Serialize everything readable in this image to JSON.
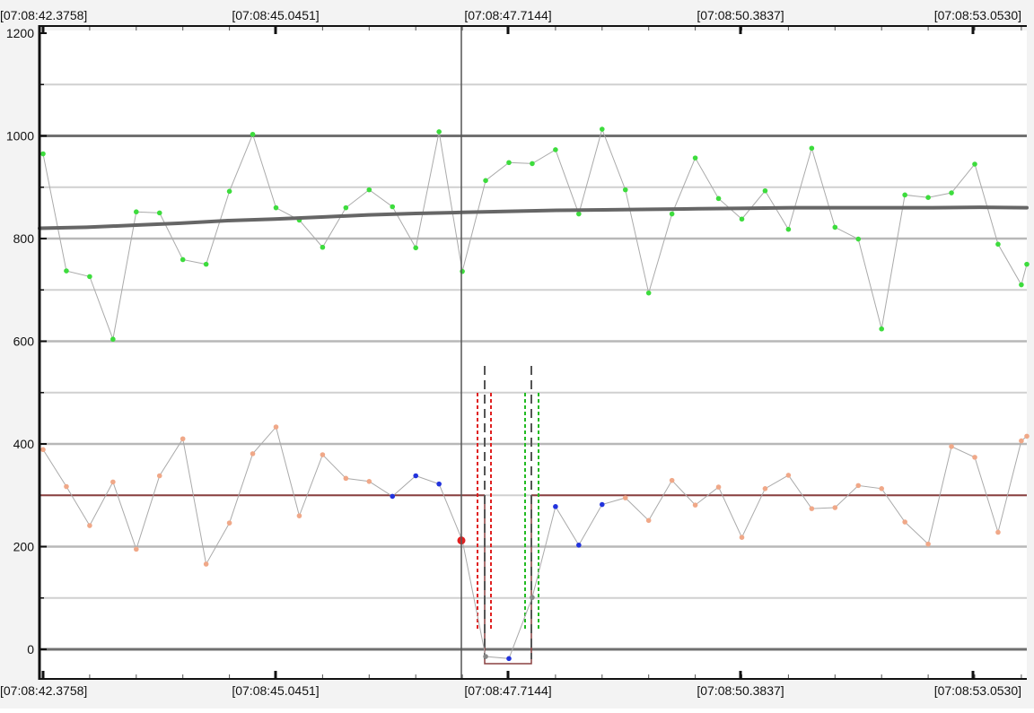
{
  "chart_data": {
    "type": "scatter",
    "x_axis": {
      "tick_labels": [
        "[07:08:42.3758]",
        "[07:08:45.0451]",
        "[07:08:47.7144]",
        "[07:08:50.3837]",
        "[07:08:53.0530]"
      ],
      "top_labels": [
        "[07:08:42.3758]",
        "[07:08:45.0451]",
        "[07:08:47.7144]",
        "[07:08:50.3837]",
        "[07:08:53.0530]"
      ],
      "bottom_labels": [
        "[07:08:42.3758]",
        "[07:08:45.0451]",
        "[07:08:47.7144]",
        "[07:08:50.3837]",
        "[07:08:53.0530]"
      ]
    },
    "y_axis": {
      "range": [
        -60,
        1200
      ],
      "tick_labels": [
        "1200",
        "1000",
        "800",
        "600",
        "400",
        "200",
        "0"
      ],
      "major_gridlines": [
        1000,
        800,
        600,
        400,
        200,
        0
      ],
      "minor_gridlines": [
        1100,
        900,
        700,
        500,
        300,
        100
      ],
      "bold_gridlines": [
        1000,
        0
      ]
    },
    "grid": true,
    "series": [
      {
        "role": "upper",
        "color": "#3ddc3d",
        "values": [
          965,
          737,
          726,
          604,
          852,
          850,
          759,
          750,
          892,
          1003,
          860,
          836,
          783,
          860,
          895,
          862,
          782,
          1008,
          736,
          913,
          948,
          946,
          973,
          848,
          1013,
          895,
          694,
          848,
          957,
          878,
          838,
          893,
          818,
          976,
          822,
          799,
          624,
          885,
          880,
          889,
          945,
          789,
          710,
          750
        ]
      },
      {
        "role": "lower",
        "color": "#f0a888",
        "values": [
          389,
          317,
          241,
          326,
          195,
          338,
          410,
          166,
          246,
          381,
          433,
          260,
          379,
          333,
          327,
          298,
          338,
          322,
          212,
          -14,
          -18,
          101,
          278,
          203,
          282,
          295,
          251,
          329,
          281,
          316,
          218,
          313,
          339,
          274,
          276,
          319,
          313,
          248,
          205,
          395,
          374,
          228,
          406,
          415
        ],
        "highlight_color_blue": "#2233dd",
        "highlight_color_gray": "#888888",
        "highlight_color_red": "#e02020"
      }
    ],
    "trend_line": {
      "color": "#666666",
      "values": [
        820,
        822,
        826,
        830,
        835,
        838,
        842,
        846,
        849,
        851,
        853,
        855,
        856,
        857,
        858,
        859,
        860,
        860,
        860,
        860,
        861,
        860
      ]
    },
    "threshold_line": {
      "value": 300,
      "color": "#8a4040"
    },
    "cursor_time": "[07:08:47.7144]",
    "selected_point": {
      "value": 212,
      "color": "#e02020"
    },
    "annotation_lines": {
      "gray_dashed_color": "#555555",
      "red_dotted_color": "#e02020",
      "green_dotted_color": "#22bb22"
    },
    "low_bracket_value": -14
  }
}
